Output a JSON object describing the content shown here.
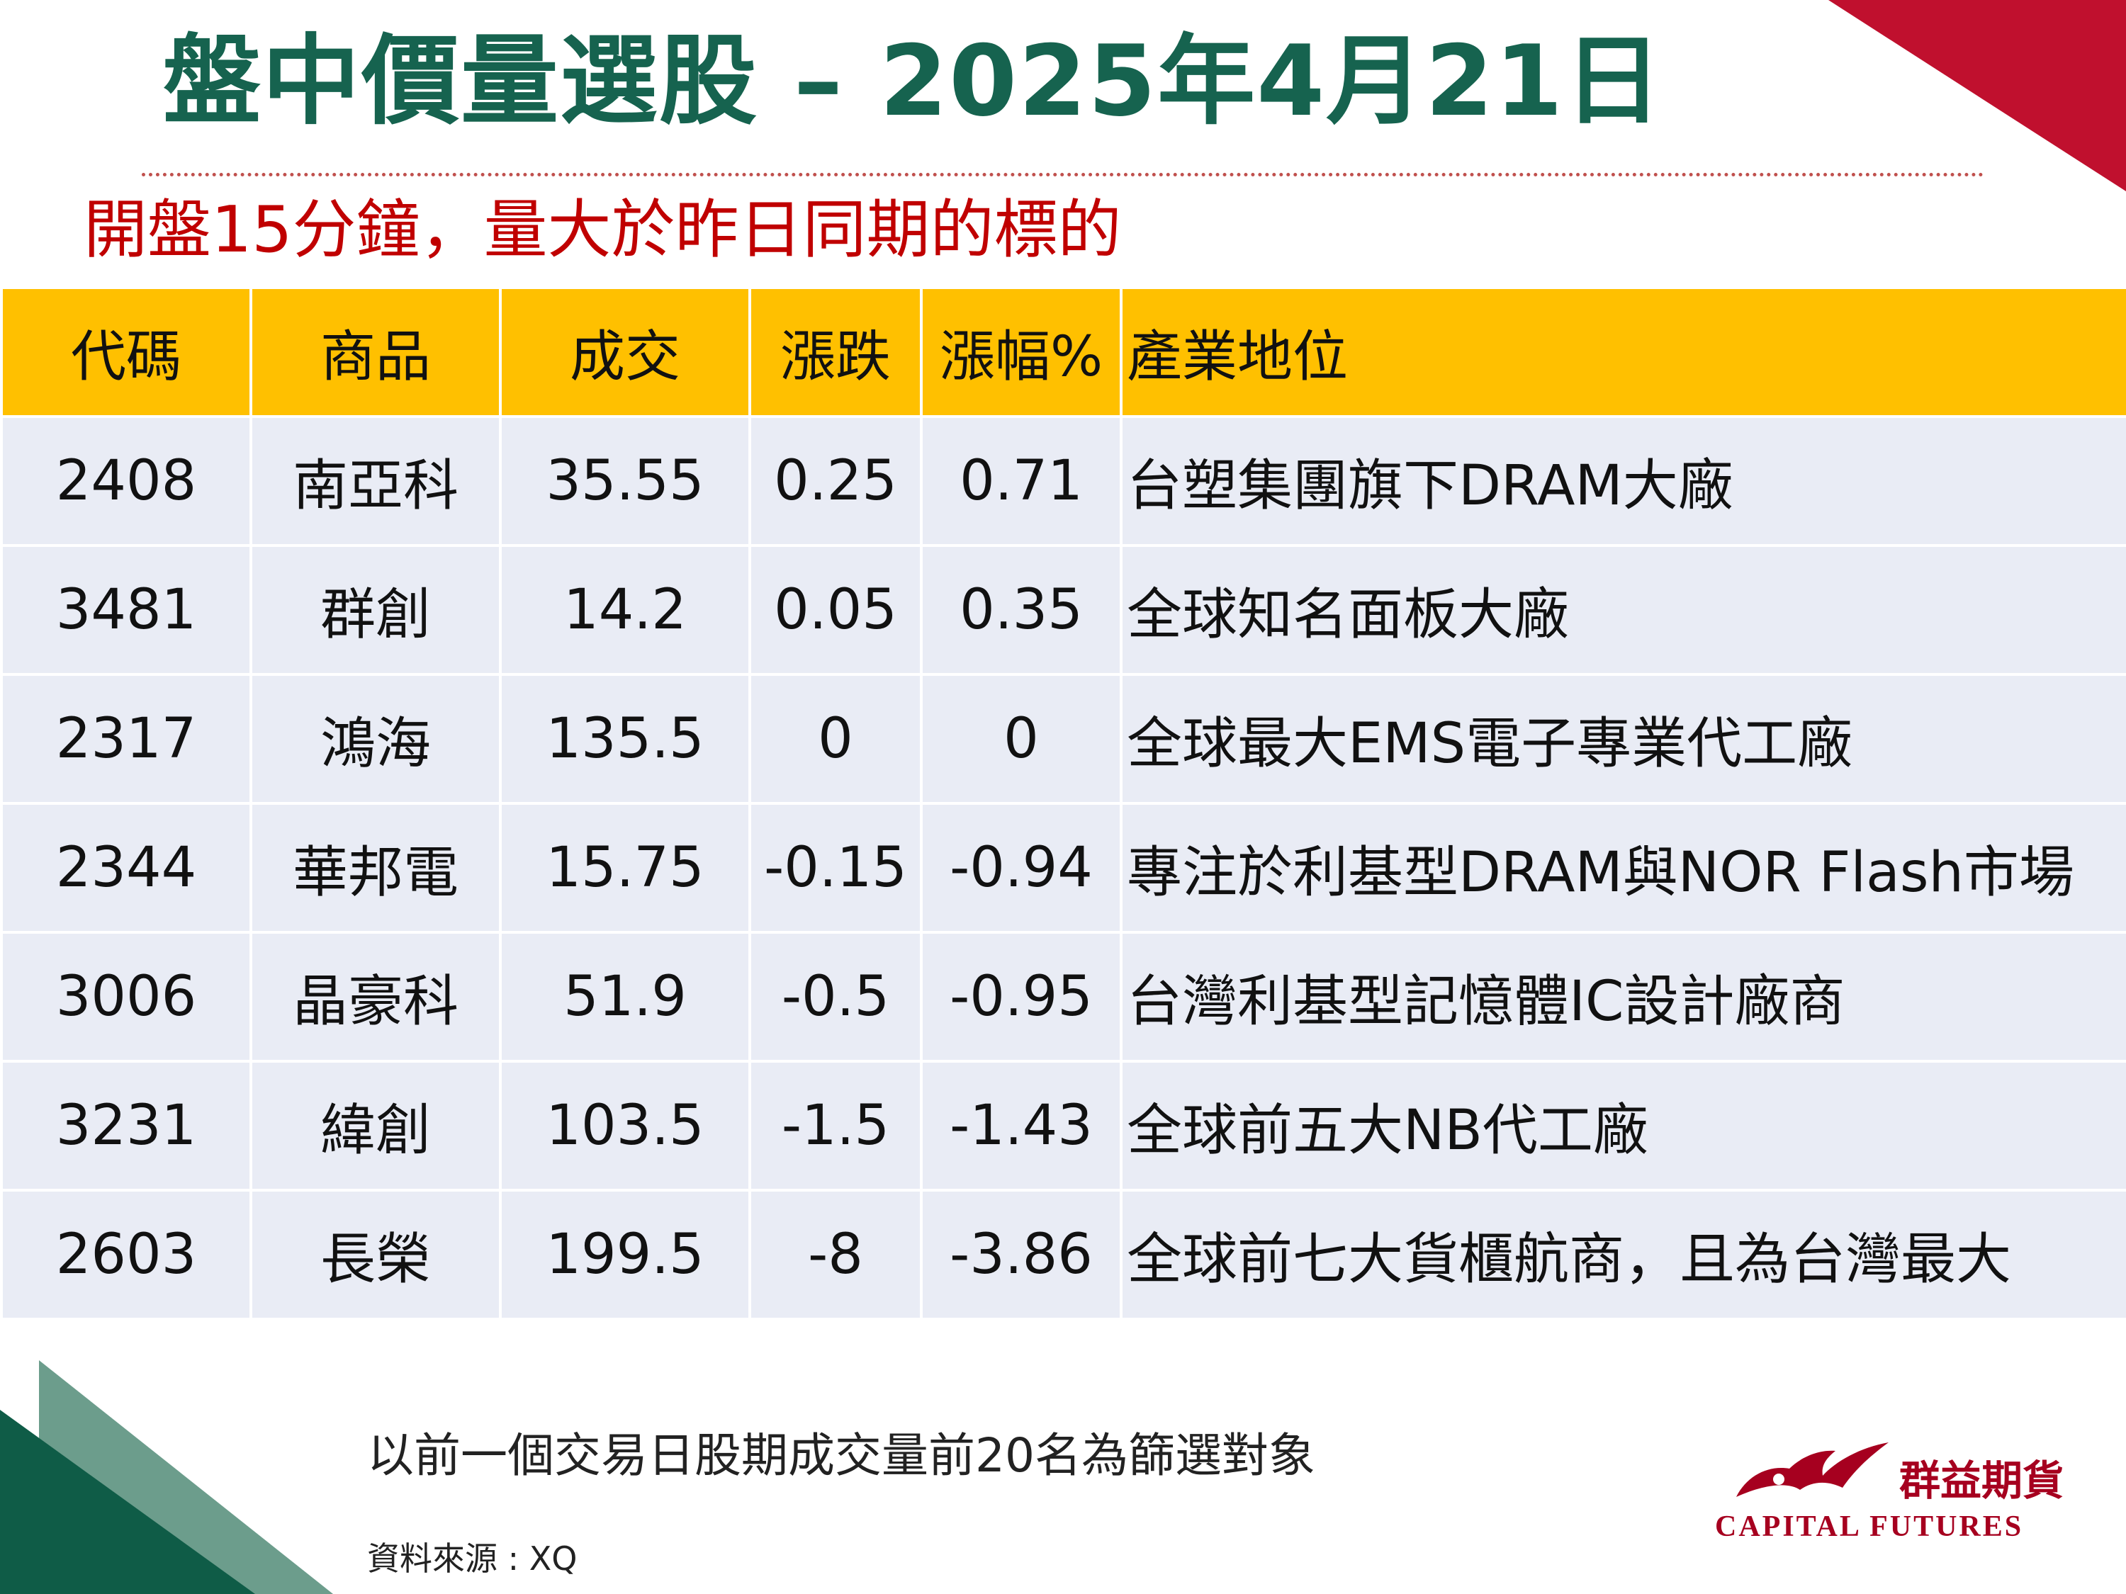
{
  "title": "盤中價量選股 – 2025年4月21日",
  "subtitle": "開盤15分鐘，量大於昨日同期的標的",
  "table": {
    "headers": [
      "代碼",
      "商品",
      "成交",
      "漲跌",
      "漲幅%",
      "產業地位"
    ],
    "rows": [
      [
        "2408",
        "南亞科",
        "35.55",
        "0.25",
        "0.71",
        "台塑集團旗下DRAM大廠"
      ],
      [
        "3481",
        "群創",
        "14.2",
        "0.05",
        "0.35",
        "全球知名面板大廠"
      ],
      [
        "2317",
        "鴻海",
        "135.5",
        "0",
        "0",
        "全球最大EMS電子專業代工廠"
      ],
      [
        "2344",
        "華邦電",
        "15.75",
        "-0.15",
        "-0.94",
        "專注於利基型DRAM與NOR Flash市場"
      ],
      [
        "3006",
        "晶豪科",
        "51.9",
        "-0.5",
        "-0.95",
        "台灣利基型記憶體IC設計廠商"
      ],
      [
        "3231",
        "緯創",
        "103.5",
        "-1.5",
        "-1.43",
        "全球前五大NB代工廠"
      ],
      [
        "2603",
        "長榮",
        "199.5",
        "-8",
        "-3.86",
        "全球前七大貨櫃航商，且為台灣最大"
      ]
    ]
  },
  "footnote": "以前一個交易日股期成交量前20名為篩選對象",
  "source": "資料來源 : XQ",
  "logo": {
    "name_cn": "群益期貨",
    "name_en": "CAPITAL FUTURES",
    "icon": "eagle-logo-icon"
  },
  "colors": {
    "title": "#16634f",
    "subtitle": "#c00000",
    "header_bg": "#ffc000",
    "row_bg": "#e9ecf5",
    "brand_red": "#a6001f",
    "brand_green": "#0f5c47"
  }
}
